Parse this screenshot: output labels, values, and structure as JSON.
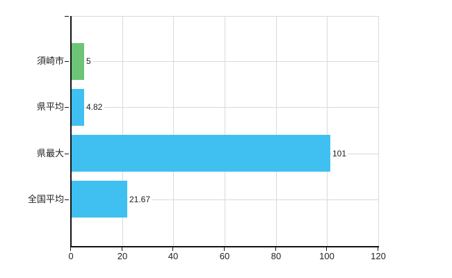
{
  "chart_data": {
    "type": "bar",
    "orientation": "horizontal",
    "title": "",
    "xlabel": "",
    "ylabel": "",
    "categories": [
      "須崎市",
      "県平均",
      "県最大",
      "全国平均"
    ],
    "values": [
      5,
      4.82,
      101,
      21.67
    ],
    "value_labels": [
      "5",
      "4.82",
      "101",
      "21.67"
    ],
    "series": [
      {
        "name": "",
        "values": [
          5,
          4.82,
          101,
          21.67
        ]
      }
    ],
    "bar_colors": [
      "#6cc577",
      "#40c0f0",
      "#40c0f0",
      "#40c0f0"
    ],
    "x_ticks": [
      0,
      20,
      40,
      60,
      80,
      100,
      120
    ],
    "x_tick_labels": [
      "0",
      "20",
      "40",
      "60",
      "80",
      "100",
      "120"
    ],
    "xlim": [
      0,
      120
    ],
    "grid": true,
    "legend": false,
    "colors": {
      "background": "#ffffff",
      "grid": "#d9d9d9",
      "axis": "#111111",
      "text": "#222222",
      "bar_green": "#6cc577",
      "bar_blue": "#40c0f0"
    }
  }
}
